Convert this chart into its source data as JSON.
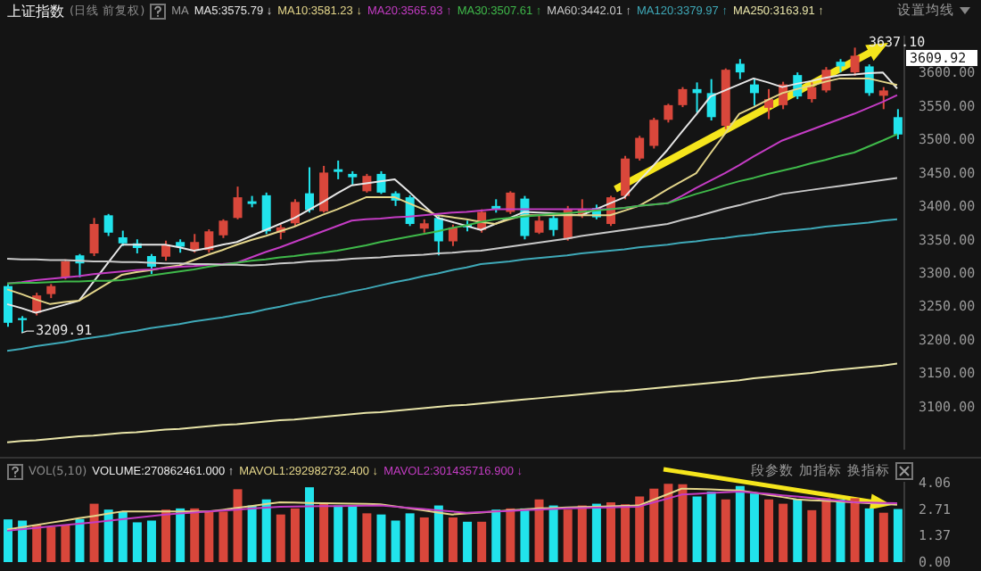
{
  "chart_data": [
    {
      "type": "candlestick",
      "title": "上证指数",
      "subtitle": "(日线 前复权)",
      "legend_title": "MA",
      "tick_labels": "y",
      "categories": [
        null,
        null,
        null,
        null,
        null,
        null,
        null,
        null,
        null,
        null,
        null,
        null,
        null,
        null,
        null,
        null,
        null,
        null,
        null,
        null,
        null,
        null,
        null,
        null,
        null,
        null,
        null,
        null,
        null,
        null,
        null,
        null,
        null,
        null,
        null,
        null,
        null,
        null,
        null,
        null,
        null,
        null,
        null,
        null,
        null,
        null,
        null,
        null,
        null,
        null,
        null,
        null,
        null,
        null,
        null,
        null,
        null,
        null,
        null,
        null,
        null,
        null,
        null
      ],
      "ohlc": [
        [
          3280,
          3283,
          3219,
          3225
        ],
        [
          3232,
          3235,
          3209.91,
          3229
        ],
        [
          3240,
          3270,
          3236,
          3266
        ],
        [
          3268,
          3283,
          3262,
          3280
        ],
        [
          3293,
          3320,
          3290,
          3317
        ],
        [
          3326,
          3328,
          3293,
          3314
        ],
        [
          3329,
          3382,
          3325,
          3373
        ],
        [
          3386,
          3388,
          3355,
          3360
        ],
        [
          3353,
          3363,
          3340,
          3344
        ],
        [
          3344,
          3350,
          3329,
          3337
        ],
        [
          3325,
          3328,
          3298,
          3309
        ],
        [
          3324,
          3348,
          3318,
          3342
        ],
        [
          3346,
          3350,
          3330,
          3339
        ],
        [
          3334,
          3358,
          3330,
          3346
        ],
        [
          3334,
          3365,
          3330,
          3362
        ],
        [
          3356,
          3380,
          3352,
          3378
        ],
        [
          3382,
          3429,
          3380,
          3413
        ],
        [
          3407,
          3415,
          3398,
          3403
        ],
        [
          3416,
          3420,
          3358,
          3362
        ],
        [
          3360,
          3372,
          3350,
          3368
        ],
        [
          3374,
          3410,
          3370,
          3406
        ],
        [
          3419,
          3458,
          3390,
          3394
        ],
        [
          3392,
          3460,
          3390,
          3450
        ],
        [
          3455,
          3468,
          3440,
          3451
        ],
        [
          3448,
          3452,
          3432,
          3443
        ],
        [
          3422,
          3448,
          3420,
          3445
        ],
        [
          3448,
          3452,
          3418,
          3420
        ],
        [
          3419,
          3422,
          3400,
          3408
        ],
        [
          3413,
          3416,
          3370,
          3373
        ],
        [
          3366,
          3380,
          3360,
          3374
        ],
        [
          3382,
          3385,
          3326,
          3347
        ],
        [
          3347,
          3372,
          3340,
          3368
        ],
        [
          3372,
          3378,
          3362,
          3368
        ],
        [
          3364,
          3395,
          3360,
          3391
        ],
        [
          3400,
          3410,
          3390,
          3395
        ],
        [
          3391,
          3422,
          3388,
          3420
        ],
        [
          3411,
          3415,
          3350,
          3355
        ],
        [
          3360,
          3385,
          3358,
          3378
        ],
        [
          3382,
          3388,
          3355,
          3364
        ],
        [
          3351,
          3400,
          3348,
          3395
        ],
        [
          3387,
          3410,
          3382,
          3395
        ],
        [
          3397,
          3402,
          3380,
          3383
        ],
        [
          3373,
          3415,
          3370,
          3413
        ],
        [
          3415,
          3475,
          3410,
          3471
        ],
        [
          3471,
          3505,
          3468,
          3502
        ],
        [
          3490,
          3532,
          3486,
          3529
        ],
        [
          3529,
          3553,
          3525,
          3551
        ],
        [
          3551,
          3578,
          3548,
          3575
        ],
        [
          3575,
          3585,
          3540,
          3569
        ],
        [
          3569,
          3590,
          3528,
          3533
        ],
        [
          3520,
          3606,
          3515,
          3604
        ],
        [
          3613,
          3620,
          3590,
          3600
        ],
        [
          3582,
          3590,
          3550,
          3569
        ],
        [
          3547,
          3575,
          3530,
          3560
        ],
        [
          3551,
          3586,
          3545,
          3582
        ],
        [
          3596,
          3600,
          3560,
          3564
        ],
        [
          3560,
          3585,
          3555,
          3578
        ],
        [
          3573,
          3608,
          3570,
          3604
        ],
        [
          3616,
          3620,
          3600,
          3609
        ],
        [
          3600,
          3637.1,
          3595,
          3625
        ],
        [
          3609,
          3612,
          3565,
          3569
        ],
        [
          3565,
          3578,
          3545,
          3573
        ],
        [
          3533,
          3545,
          3500,
          3507
        ]
      ],
      "colors": [
        "#21e3ec",
        "#21e3ec",
        "#d9473b",
        "#d9473b",
        "#d9473b",
        "#21e3ec",
        "#d9473b",
        "#21e3ec",
        "#21e3ec",
        "#21e3ec",
        "#21e3ec",
        "#d9473b",
        "#21e3ec",
        "#d9473b",
        "#d9473b",
        "#d9473b",
        "#d9473b",
        "#21e3ec",
        "#21e3ec",
        "#d9473b",
        "#d9473b",
        "#21e3ec",
        "#d9473b",
        "#21e3ec",
        "#21e3ec",
        "#d9473b",
        "#21e3ec",
        "#21e3ec",
        "#21e3ec",
        "#d9473b",
        "#21e3ec",
        "#d9473b",
        "#21e3ec",
        "#d9473b",
        "#21e3ec",
        "#d9473b",
        "#21e3ec",
        "#d9473b",
        "#21e3ec",
        "#d9473b",
        "#d9473b",
        "#21e3ec",
        "#d9473b",
        "#d9473b",
        "#d9473b",
        "#d9473b",
        "#d9473b",
        "#d9473b",
        "#21e3ec",
        "#21e3ec",
        "#d9473b",
        "#21e3ec",
        "#21e3ec",
        "#d9473b",
        "#d9473b",
        "#21e3ec",
        "#d9473b",
        "#d9473b",
        "#21e3ec",
        "#d9473b",
        "#21e3ec",
        "#d9473b",
        "#21e3ec"
      ],
      "series": [
        {
          "type": "line",
          "name": "MA5:3575.79 ↓",
          "color": "#e6e6e6",
          "values": [
            3253,
            3247,
            3240,
            3246,
            3252,
            3258,
            3286,
            3314,
            3342,
            3342,
            3342,
            3342,
            3338,
            3333,
            3337,
            3342,
            3346,
            3355,
            3364,
            3373,
            3382,
            3394,
            3406,
            3419,
            3431,
            3434,
            3437,
            3440,
            3421,
            3401,
            3382,
            3376,
            3370,
            3364,
            3373,
            3382,
            3391,
            3390,
            3389,
            3387,
            3386,
            3395,
            3404,
            3413,
            3437,
            3460,
            3484,
            3511,
            3537,
            3564,
            3573,
            3582,
            3591,
            3585,
            3578,
            3583,
            3587,
            3592,
            3596,
            3597,
            3599,
            3600,
            3575.79
          ]
        },
        {
          "type": "line",
          "name": "MA10:3581.23 ↓",
          "color": "#e3d58a",
          "values": [
            3275,
            3268,
            3260,
            3253,
            3256,
            3258,
            3271,
            3284,
            3297,
            3301,
            3304,
            3308,
            3311,
            3319,
            3327,
            3334,
            3342,
            3349,
            3355,
            3362,
            3369,
            3378,
            3387,
            3395,
            3404,
            3413,
            3413,
            3413,
            3404,
            3395,
            3386,
            3383,
            3380,
            3376,
            3373,
            3380,
            3386,
            3386,
            3386,
            3386,
            3386,
            3386,
            3386,
            3393,
            3400,
            3412,
            3425,
            3437,
            3449,
            3479,
            3508,
            3538,
            3548,
            3559,
            3569,
            3575,
            3580,
            3586,
            3591,
            3591,
            3591,
            3586,
            3581.23
          ]
        },
        {
          "type": "line",
          "name": "MA20:3565.93 ↑",
          "color": "#c43cc4",
          "values": [
            3284,
            3286,
            3289,
            3291,
            3293,
            3295,
            3298,
            3300,
            3302,
            3304,
            3305,
            3307,
            3309,
            3310,
            3312,
            3313,
            3315,
            3323,
            3331,
            3338,
            3346,
            3354,
            3362,
            3370,
            3378,
            3380,
            3381,
            3383,
            3384,
            3386,
            3388,
            3390,
            3391,
            3393,
            3395,
            3395,
            3395,
            3395,
            3395,
            3395,
            3395,
            3395,
            3395,
            3397,
            3400,
            3402,
            3404,
            3415,
            3427,
            3438,
            3449,
            3461,
            3474,
            3486,
            3498,
            3506,
            3514,
            3522,
            3530,
            3538,
            3547,
            3556,
            3565.93
          ]
        },
        {
          "type": "line",
          "name": "MA30:3507.61 ↑",
          "color": "#3fb94a",
          "values": [
            3284,
            3285,
            3285,
            3286,
            3287,
            3287,
            3288,
            3288,
            3289,
            3292,
            3296,
            3299,
            3302,
            3305,
            3309,
            3312,
            3315,
            3318,
            3320,
            3323,
            3325,
            3328,
            3330,
            3333,
            3337,
            3341,
            3346,
            3350,
            3354,
            3358,
            3362,
            3367,
            3371,
            3376,
            3380,
            3382,
            3384,
            3386,
            3388,
            3389,
            3391,
            3393,
            3395,
            3397,
            3400,
            3402,
            3404,
            3411,
            3418,
            3424,
            3431,
            3437,
            3442,
            3448,
            3453,
            3458,
            3464,
            3469,
            3475,
            3480,
            3489,
            3498,
            3507.61
          ]
        },
        {
          "type": "line",
          "name": "MA60:3442.01 ↑",
          "color": "#c9c9c9",
          "values": [
            3321,
            3320,
            3320,
            3319,
            3319,
            3318,
            3317,
            3317,
            3316,
            3316,
            3315,
            3314,
            3314,
            3313,
            3313,
            3312,
            3312,
            3311,
            3312,
            3314,
            3315,
            3317,
            3318,
            3319,
            3321,
            3322,
            3323,
            3325,
            3326,
            3327,
            3329,
            3330,
            3332,
            3333,
            3336,
            3339,
            3342,
            3345,
            3348,
            3351,
            3355,
            3358,
            3361,
            3364,
            3367,
            3370,
            3373,
            3379,
            3384,
            3390,
            3396,
            3401,
            3407,
            3412,
            3418,
            3421,
            3424,
            3427,
            3430,
            3433,
            3436,
            3439,
            3442.01
          ]
        },
        {
          "type": "line",
          "name": "MA120:3379.97 ↑",
          "color": "#3fa9b8",
          "values": [
            3183,
            3186,
            3190,
            3193,
            3196,
            3200,
            3203,
            3206,
            3210,
            3213,
            3217,
            3220,
            3223,
            3227,
            3230,
            3233,
            3237,
            3240,
            3245,
            3249,
            3254,
            3258,
            3263,
            3267,
            3272,
            3276,
            3281,
            3286,
            3290,
            3295,
            3299,
            3304,
            3308,
            3313,
            3315,
            3317,
            3320,
            3322,
            3324,
            3326,
            3329,
            3331,
            3333,
            3335,
            3338,
            3340,
            3342,
            3345,
            3347,
            3350,
            3352,
            3355,
            3357,
            3360,
            3362,
            3364,
            3366,
            3369,
            3371,
            3373,
            3375,
            3378,
            3379.97
          ]
        },
        {
          "type": "line",
          "name": "MA250:3163.91 ↑",
          "color": "#e8e4a8",
          "values": [
            3046,
            3048,
            3049,
            3051,
            3053,
            3055,
            3056,
            3058,
            3060,
            3061,
            3063,
            3065,
            3066,
            3068,
            3070,
            3072,
            3073,
            3075,
            3077,
            3079,
            3080,
            3082,
            3084,
            3086,
            3088,
            3090,
            3091,
            3093,
            3095,
            3097,
            3099,
            3101,
            3102,
            3104,
            3106,
            3108,
            3110,
            3112,
            3114,
            3116,
            3118,
            3120,
            3122,
            3123,
            3125,
            3127,
            3129,
            3131,
            3133,
            3135,
            3137,
            3139,
            3142,
            3144,
            3146,
            3148,
            3150,
            3153,
            3155,
            3157,
            3159,
            3161,
            3163.91
          ]
        }
      ],
      "ylim": [
        3035,
        3655
      ],
      "yticks": [
        {
          "value": 3100,
          "label": "3100.00"
        },
        {
          "value": 3150,
          "label": "3150.00"
        },
        {
          "value": 3200,
          "label": "3200.00"
        },
        {
          "value": 3250,
          "label": "3250.00"
        },
        {
          "value": 3300,
          "label": "3300.00"
        },
        {
          "value": 3350,
          "label": "3350.00"
        },
        {
          "value": 3400,
          "label": "3400.00"
        },
        {
          "value": 3450,
          "label": "3450.00"
        },
        {
          "value": 3500,
          "label": "3500.00"
        },
        {
          "value": 3550,
          "label": "3550.00"
        },
        {
          "value": 3600,
          "label": "3600.00"
        }
      ],
      "annotations": [
        "设置均线",
        "3609.92",
        "3637.10",
        {
          "text": "3209.91",
          "y": 3209.91
        }
      ]
    },
    {
      "type": "bar",
      "title": "VOL(5,10)",
      "tick_labels": "y",
      "categories": [
        null,
        null,
        null,
        null,
        null,
        null,
        null,
        null,
        null,
        null,
        null,
        null,
        null,
        null,
        null,
        null,
        null,
        null,
        null,
        null,
        null,
        null,
        null,
        null,
        null,
        null,
        null,
        null,
        null,
        null,
        null,
        null,
        null,
        null,
        null,
        null,
        null,
        null,
        null,
        null,
        null,
        null,
        null,
        null,
        null,
        null,
        null,
        null,
        null,
        null,
        null,
        null,
        null,
        null,
        null,
        null,
        null,
        null,
        null,
        null,
        null,
        null,
        null
      ],
      "values": [
        2.18,
        2.12,
        1.9,
        1.8,
        1.9,
        2.2,
        2.98,
        2.68,
        2.58,
        2.03,
        2.12,
        2.68,
        2.74,
        2.74,
        2.58,
        2.58,
        3.72,
        2.89,
        3.2,
        2.43,
        2.74,
        3.82,
        3.05,
        2.89,
        2.89,
        2.49,
        2.43,
        2.12,
        2.49,
        2.28,
        2.89,
        2.28,
        2.06,
        2.06,
        2.68,
        2.74,
        2.74,
        3.2,
        2.89,
        2.68,
        2.89,
        2.98,
        3.05,
        2.95,
        3.35,
        3.75,
        4.0,
        3.97,
        3.35,
        3.6,
        3.2,
        3.88,
        3.5,
        3.2,
        2.98,
        3.2,
        2.65,
        3.26,
        3.2,
        3.26,
        2.74,
        2.52,
        2.71
      ],
      "colors": [
        "#21e3ec",
        "#21e3ec",
        "#d9473b",
        "#d9473b",
        "#d9473b",
        "#21e3ec",
        "#d9473b",
        "#21e3ec",
        "#21e3ec",
        "#21e3ec",
        "#21e3ec",
        "#d9473b",
        "#21e3ec",
        "#d9473b",
        "#d9473b",
        "#d9473b",
        "#d9473b",
        "#21e3ec",
        "#21e3ec",
        "#d9473b",
        "#d9473b",
        "#21e3ec",
        "#d9473b",
        "#21e3ec",
        "#21e3ec",
        "#d9473b",
        "#21e3ec",
        "#21e3ec",
        "#21e3ec",
        "#d9473b",
        "#21e3ec",
        "#d9473b",
        "#21e3ec",
        "#d9473b",
        "#21e3ec",
        "#d9473b",
        "#21e3ec",
        "#d9473b",
        "#21e3ec",
        "#d9473b",
        "#d9473b",
        "#21e3ec",
        "#d9473b",
        "#d9473b",
        "#d9473b",
        "#d9473b",
        "#d9473b",
        "#d9473b",
        "#21e3ec",
        "#21e3ec",
        "#d9473b",
        "#21e3ec",
        "#21e3ec",
        "#d9473b",
        "#d9473b",
        "#21e3ec",
        "#d9473b",
        "#d9473b",
        "#21e3ec",
        "#d9473b",
        "#21e3ec",
        "#d9473b",
        "#21e3ec"
      ],
      "series": [
        {
          "type": "line",
          "name": "MAVOL1:292982732.400 ↓",
          "color": "#e3d58a",
          "values": [
            1.66,
            1.78,
            1.89,
            2.01,
            2.12,
            2.24,
            2.35,
            2.47,
            2.58,
            2.58,
            2.58,
            2.58,
            2.58,
            2.58,
            2.58,
            2.67,
            2.77,
            2.86,
            2.96,
            3.05,
            3.04,
            3.02,
            3.01,
            3.0,
            2.98,
            2.97,
            2.95,
            2.85,
            2.74,
            2.64,
            2.53,
            2.43,
            2.48,
            2.53,
            2.59,
            2.64,
            2.69,
            2.74,
            2.76,
            2.79,
            2.81,
            2.83,
            2.85,
            2.87,
            2.89,
            3.18,
            3.46,
            3.75,
            3.73,
            3.71,
            3.68,
            3.66,
            3.55,
            3.43,
            3.32,
            3.2,
            3.16,
            3.13,
            3.09,
            3.05,
            3.01,
            2.97,
            2.93
          ]
        },
        {
          "type": "line",
          "name": "MAVOL2:301435716.900 ↓",
          "color": "#c43cc4",
          "values": [
            1.6,
            1.67,
            1.74,
            1.82,
            1.89,
            1.96,
            2.03,
            2.11,
            2.19,
            2.27,
            2.35,
            2.43,
            2.48,
            2.53,
            2.58,
            2.63,
            2.68,
            2.73,
            2.78,
            2.83,
            2.84,
            2.85,
            2.86,
            2.86,
            2.87,
            2.88,
            2.89,
            2.83,
            2.77,
            2.71,
            2.64,
            2.58,
            2.52,
            2.55,
            2.58,
            2.61,
            2.65,
            2.68,
            2.71,
            2.74,
            2.76,
            2.78,
            2.79,
            2.81,
            2.83,
            3.04,
            3.24,
            3.45,
            3.49,
            3.53,
            3.56,
            3.6,
            3.54,
            3.48,
            3.41,
            3.35,
            3.28,
            3.2,
            3.13,
            3.05,
            3.04,
            3.02,
            3.01
          ]
        }
      ],
      "ylim": [
        0,
        4.1
      ],
      "yticks": [
        {
          "value": 0,
          "label": "0.00"
        },
        {
          "value": 1.37,
          "label": "1.37"
        },
        {
          "value": 2.71,
          "label": "2.71"
        },
        {
          "value": 4.06,
          "label": "4.06"
        }
      ],
      "annotations": [
        "VOLUME:270862461.000 ↑",
        "段参数",
        "加指标",
        "换指标"
      ]
    }
  ]
}
